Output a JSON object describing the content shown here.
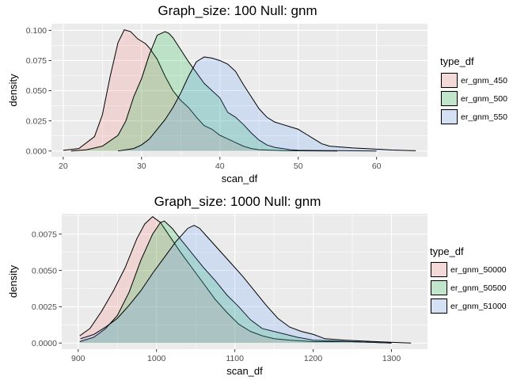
{
  "chart_data": [
    {
      "type": "area",
      "title": "Graph_size: 100 Null: gnm",
      "xlabel": "scan_df",
      "ylabel": "density",
      "xlim": [
        18.5,
        66.5
      ],
      "ylim": [
        -0.0048,
        0.1055
      ],
      "xticks": [
        20,
        30,
        40,
        50,
        60
      ],
      "xtick_labels": [
        "20",
        "30",
        "40",
        "50",
        "60"
      ],
      "yticks": [
        0,
        0.025,
        0.05,
        0.075,
        0.1
      ],
      "ytick_labels": [
        "0.000",
        "0.025",
        "0.050",
        "0.075",
        "0.100"
      ],
      "grid": true,
      "legend_title": "type_df",
      "legend_position": "right",
      "series": [
        {
          "name": "er_gnm_450",
          "color": "#F8766D",
          "points": [
            [
              20,
              0.0005
            ],
            [
              22,
              0.002
            ],
            [
              24,
              0.012
            ],
            [
              25,
              0.03
            ],
            [
              26,
              0.062
            ],
            [
              27,
              0.09
            ],
            [
              27.8,
              0.1005
            ],
            [
              28.6,
              0.099
            ],
            [
              29.5,
              0.093
            ],
            [
              30.5,
              0.089
            ],
            [
              31,
              0.0855
            ],
            [
              32,
              0.076
            ],
            [
              33,
              0.062
            ],
            [
              34,
              0.05
            ],
            [
              35,
              0.042
            ],
            [
              36,
              0.036
            ],
            [
              37,
              0.028
            ],
            [
              38,
              0.021
            ],
            [
              39,
              0.018
            ],
            [
              40,
              0.013
            ],
            [
              41,
              0.01
            ],
            [
              42,
              0.007
            ],
            [
              43,
              0.004
            ],
            [
              44,
              0.002
            ],
            [
              45,
              0.001
            ],
            [
              46,
              0.0008
            ],
            [
              48,
              0.0003
            ],
            [
              50,
              0.0001
            ],
            [
              55,
              0
            ]
          ]
        },
        {
          "name": "er_gnm_500",
          "color": "#00BA38",
          "points": [
            [
              21,
              0
            ],
            [
              23,
              0.001
            ],
            [
              25,
              0.004
            ],
            [
              27,
              0.013
            ],
            [
              28,
              0.025
            ],
            [
              29,
              0.045
            ],
            [
              30,
              0.06
            ],
            [
              31,
              0.08
            ],
            [
              32,
              0.096
            ],
            [
              33,
              0.099
            ],
            [
              33.5,
              0.0975
            ],
            [
              34,
              0.094
            ],
            [
              35,
              0.084
            ],
            [
              36,
              0.074
            ],
            [
              37,
              0.065
            ],
            [
              38,
              0.056
            ],
            [
              39,
              0.05
            ],
            [
              40,
              0.044
            ],
            [
              41,
              0.032
            ],
            [
              42,
              0.028
            ],
            [
              43,
              0.022
            ],
            [
              44,
              0.015
            ],
            [
              45,
              0.009
            ],
            [
              46,
              0.005
            ],
            [
              47,
              0.003
            ],
            [
              48,
              0.002
            ],
            [
              49,
              0.001
            ],
            [
              50,
              0.0006
            ],
            [
              55,
              0.0003
            ],
            [
              60,
              0
            ]
          ]
        },
        {
          "name": "er_gnm_550",
          "color": "#619CFF",
          "points": [
            [
              27,
              0
            ],
            [
              29,
              0.002
            ],
            [
              30,
              0.005
            ],
            [
              31,
              0.01
            ],
            [
              32,
              0.018
            ],
            [
              33,
              0.026
            ],
            [
              34,
              0.036
            ],
            [
              35,
              0.048
            ],
            [
              36,
              0.062
            ],
            [
              37,
              0.074
            ],
            [
              38,
              0.078
            ],
            [
              39,
              0.077
            ],
            [
              40,
              0.075
            ],
            [
              41,
              0.072
            ],
            [
              42,
              0.066
            ],
            [
              43,
              0.055
            ],
            [
              44,
              0.045
            ],
            [
              45,
              0.035
            ],
            [
              46,
              0.028
            ],
            [
              47,
              0.024
            ],
            [
              48,
              0.022
            ],
            [
              49,
              0.02
            ],
            [
              50,
              0.018
            ],
            [
              51,
              0.014
            ],
            [
              52,
              0.01
            ],
            [
              53,
              0.006
            ],
            [
              54,
              0.004
            ],
            [
              55,
              0.0035
            ],
            [
              57,
              0.0025
            ],
            [
              60,
              0.0015
            ],
            [
              62,
              0.0008
            ],
            [
              65,
              0.0002
            ]
          ]
        }
      ]
    },
    {
      "type": "area",
      "title": "Graph_size: 1000 Null: gnm",
      "xlabel": "scan_df",
      "ylabel": "density",
      "xlim": [
        879,
        1346
      ],
      "ylim": [
        -0.00042,
        0.0089
      ],
      "xticks": [
        900,
        1000,
        1100,
        1200,
        1300
      ],
      "xtick_labels": [
        "900",
        "1000",
        "1100",
        "1200",
        "1300"
      ],
      "yticks": [
        0,
        0.0025,
        0.005,
        0.0075
      ],
      "ytick_labels": [
        "0.0000",
        "0.0025",
        "0.0050",
        "0.0075"
      ],
      "grid": true,
      "legend_title": "type_df",
      "legend_position": "right",
      "series": [
        {
          "name": "er_gnm_50000",
          "color": "#F8766D",
          "points": [
            [
              902,
              0.0005
            ],
            [
              915,
              0.001
            ],
            [
              930,
              0.0022
            ],
            [
              945,
              0.0036
            ],
            [
              960,
              0.0052
            ],
            [
              975,
              0.0072
            ],
            [
              985,
              0.0082
            ],
            [
              995,
              0.0087
            ],
            [
              1005,
              0.0083
            ],
            [
              1015,
              0.0075
            ],
            [
              1030,
              0.0063
            ],
            [
              1045,
              0.0052
            ],
            [
              1060,
              0.0041
            ],
            [
              1075,
              0.003
            ],
            [
              1090,
              0.0021
            ],
            [
              1105,
              0.0013
            ],
            [
              1120,
              0.0008
            ],
            [
              1135,
              0.0005
            ],
            [
              1150,
              0.0003
            ],
            [
              1170,
              0.0002
            ],
            [
              1200,
              0.0001
            ],
            [
              1250,
              0.0001
            ],
            [
              1300,
              0
            ]
          ]
        },
        {
          "name": "er_gnm_50500",
          "color": "#00BA38",
          "points": [
            [
              902,
              0.0001
            ],
            [
              920,
              0.0004
            ],
            [
              935,
              0.001
            ],
            [
              950,
              0.0019
            ],
            [
              965,
              0.0035
            ],
            [
              980,
              0.0057
            ],
            [
              995,
              0.0075
            ],
            [
              1005,
              0.0083
            ],
            [
              1010,
              0.0084
            ],
            [
              1020,
              0.0079
            ],
            [
              1030,
              0.0072
            ],
            [
              1045,
              0.0062
            ],
            [
              1060,
              0.0052
            ],
            [
              1075,
              0.0043
            ],
            [
              1090,
              0.0033
            ],
            [
              1105,
              0.0025
            ],
            [
              1120,
              0.0016
            ],
            [
              1135,
              0.001
            ],
            [
              1150,
              0.0008
            ],
            [
              1165,
              0.0006
            ],
            [
              1180,
              0.0004
            ],
            [
              1200,
              0.0002
            ],
            [
              1250,
              0.0001
            ],
            [
              1300,
              0
            ]
          ]
        },
        {
          "name": "er_gnm_51000",
          "color": "#619CFF",
          "points": [
            [
              903,
              0.0003
            ],
            [
              920,
              0.0006
            ],
            [
              935,
              0.0011
            ],
            [
              950,
              0.0017
            ],
            [
              965,
              0.0026
            ],
            [
              980,
              0.0036
            ],
            [
              995,
              0.0048
            ],
            [
              1010,
              0.0059
            ],
            [
              1025,
              0.007
            ],
            [
              1040,
              0.0079
            ],
            [
              1048,
              0.0081
            ],
            [
              1055,
              0.0079
            ],
            [
              1065,
              0.0073
            ],
            [
              1080,
              0.0064
            ],
            [
              1095,
              0.0055
            ],
            [
              1110,
              0.0046
            ],
            [
              1125,
              0.0036
            ],
            [
              1140,
              0.0026
            ],
            [
              1155,
              0.0017
            ],
            [
              1170,
              0.0011
            ],
            [
              1185,
              0.0008
            ],
            [
              1200,
              0.0006
            ],
            [
              1215,
              0.0003
            ],
            [
              1240,
              0.0002
            ],
            [
              1280,
              0.0001
            ],
            [
              1325,
              0
            ]
          ]
        }
      ]
    }
  ]
}
